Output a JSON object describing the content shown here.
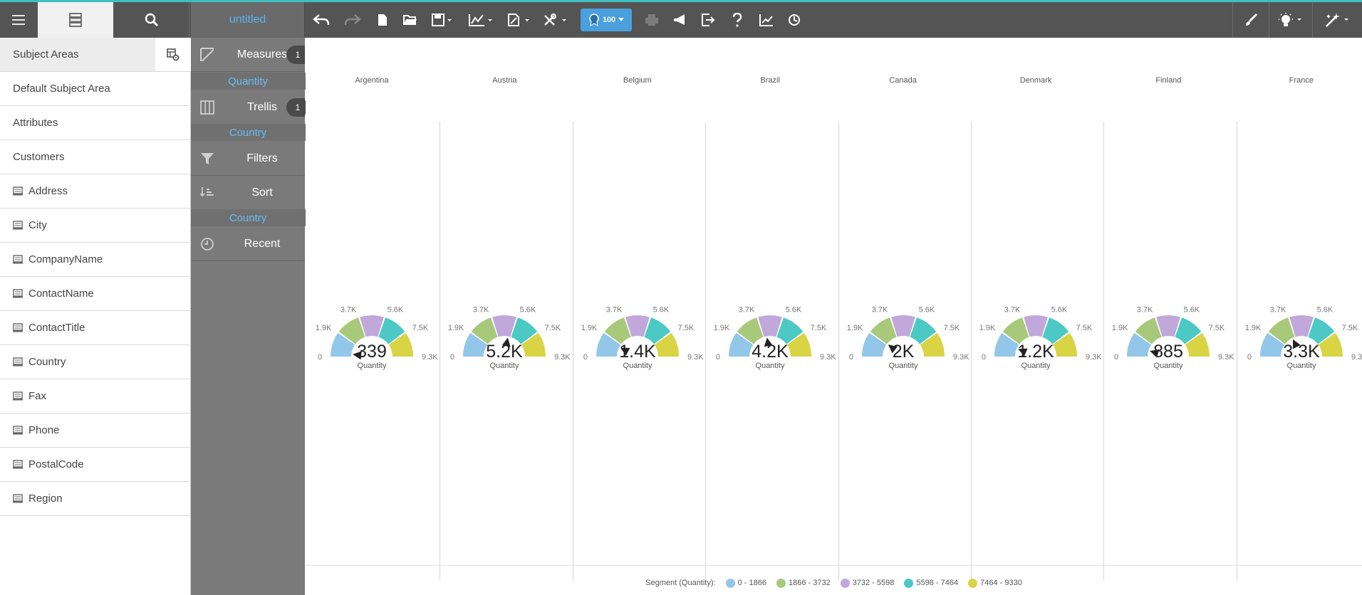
{
  "app": {
    "title": "untitled",
    "accent": "#3fbfc0",
    "highlight": "#5ab4ec"
  },
  "toolbar": {
    "zoom_label": "100",
    "icons": [
      "menu-icon",
      "browse-tab-icon",
      "search-icon",
      "undo-icon",
      "redo-icon",
      "new-document-icon",
      "open-folder-icon",
      "save-icon",
      "chart-type-icon",
      "page-settings-icon",
      "tools-icon",
      "zoom-badge-icon",
      "print-icon",
      "announce-icon",
      "export-icon",
      "help-icon",
      "trend-icon",
      "timer-icon",
      "brush-icon",
      "insights-icon",
      "magic-wand-icon"
    ]
  },
  "subject_panel": {
    "header": "Subject Areas",
    "items": [
      {
        "label": "Default Subject Area",
        "field": false
      },
      {
        "label": "Attributes",
        "field": false
      },
      {
        "label": "Customers",
        "field": false
      },
      {
        "label": "Address",
        "field": true
      },
      {
        "label": "City",
        "field": true
      },
      {
        "label": "CompanyName",
        "field": true
      },
      {
        "label": "ContactName",
        "field": true
      },
      {
        "label": "ContactTitle",
        "field": true
      },
      {
        "label": "Country",
        "field": true
      },
      {
        "label": "Fax",
        "field": true
      },
      {
        "label": "Phone",
        "field": true
      },
      {
        "label": "PostalCode",
        "field": true
      },
      {
        "label": "Region",
        "field": true
      }
    ]
  },
  "shelves": {
    "measures": {
      "label": "Measures",
      "count": "1",
      "pill": "Quantity"
    },
    "trellis": {
      "label": "Trellis",
      "count": "1",
      "pill": "Country"
    },
    "filters": {
      "label": "Filters"
    },
    "sort": {
      "label": "Sort",
      "pill": "Country"
    },
    "recent": {
      "label": "Recent"
    }
  },
  "chart_data": {
    "type": "gauge",
    "measure": "Quantity",
    "trellis_by": "Country",
    "range": [
      0,
      9330
    ],
    "tick_labels": [
      "0",
      "1.9K",
      "3.7K",
      "5.6K",
      "7.5K",
      "9.3K"
    ],
    "segments": [
      {
        "label": "0 - 1866",
        "from": 0,
        "to": 1866,
        "color": "#92c7ea"
      },
      {
        "label": "1866 - 3732",
        "from": 1866,
        "to": 3732,
        "color": "#a8c97a"
      },
      {
        "label": "3732 - 5598",
        "from": 3732,
        "to": 5598,
        "color": "#c0a8db"
      },
      {
        "label": "5598 - 7464",
        "from": 5598,
        "to": 7464,
        "color": "#4cc9c4"
      },
      {
        "label": "7464 - 9330",
        "from": 7464,
        "to": 9330,
        "color": "#d9d443"
      }
    ],
    "gauges": [
      {
        "country": "Argentina",
        "value": 339,
        "display": "339"
      },
      {
        "country": "Austria",
        "value": 5200,
        "display": "5.2K"
      },
      {
        "country": "Belgium",
        "value": 1400,
        "display": "1.4K"
      },
      {
        "country": "Brazil",
        "value": 4200,
        "display": "4.2K"
      },
      {
        "country": "Canada",
        "value": 2000,
        "display": "2K"
      },
      {
        "country": "Denmark",
        "value": 1200,
        "display": "1.2K"
      },
      {
        "country": "Finland",
        "value": 885,
        "display": "885"
      },
      {
        "country": "France",
        "value": 3300,
        "display": "3.3K"
      }
    ],
    "legend_title": "Segment (Quantity):"
  }
}
